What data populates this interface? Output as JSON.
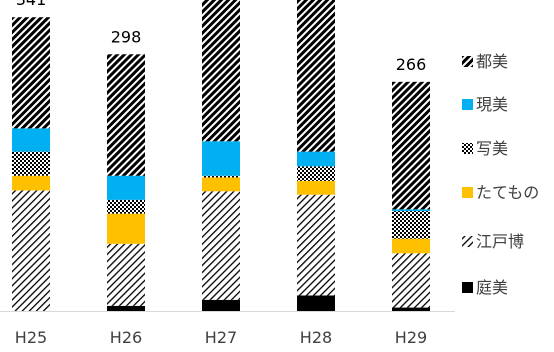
{
  "chart_data": {
    "type": "bar",
    "stacked": true,
    "categories": [
      "H25",
      "H26",
      "H27",
      "H28",
      "H29"
    ],
    "ylim": [
      0,
      361
    ],
    "series": [
      {
        "name": "庭美",
        "pattern": "solid",
        "color": "#000000",
        "values": [
          0,
          6,
          13,
          18,
          4
        ]
      },
      {
        "name": "江戸博",
        "pattern": "light-diagonal",
        "color": "#000000",
        "values": [
          140,
          72,
          126,
          117,
          63
        ]
      },
      {
        "name": "たてもの",
        "pattern": "solid",
        "color": "#FFC000",
        "values": [
          17,
          35,
          16,
          16,
          17
        ]
      },
      {
        "name": "写美",
        "pattern": "checker",
        "color": "#000000",
        "values": [
          28,
          16,
          2,
          17,
          32
        ]
      },
      {
        "name": "現美",
        "pattern": "solid",
        "color": "#00B0F0",
        "values": [
          27,
          28,
          40,
          17,
          2
        ]
      },
      {
        "name": "都美",
        "pattern": "wide-diagonal",
        "color": "#000000",
        "values": [
          129,
          141,
          176,
          176,
          148
        ]
      }
    ],
    "totals": [
      "341",
      "298",
      "",
      "",
      "266"
    ],
    "grid": false,
    "legend_position": "right"
  }
}
